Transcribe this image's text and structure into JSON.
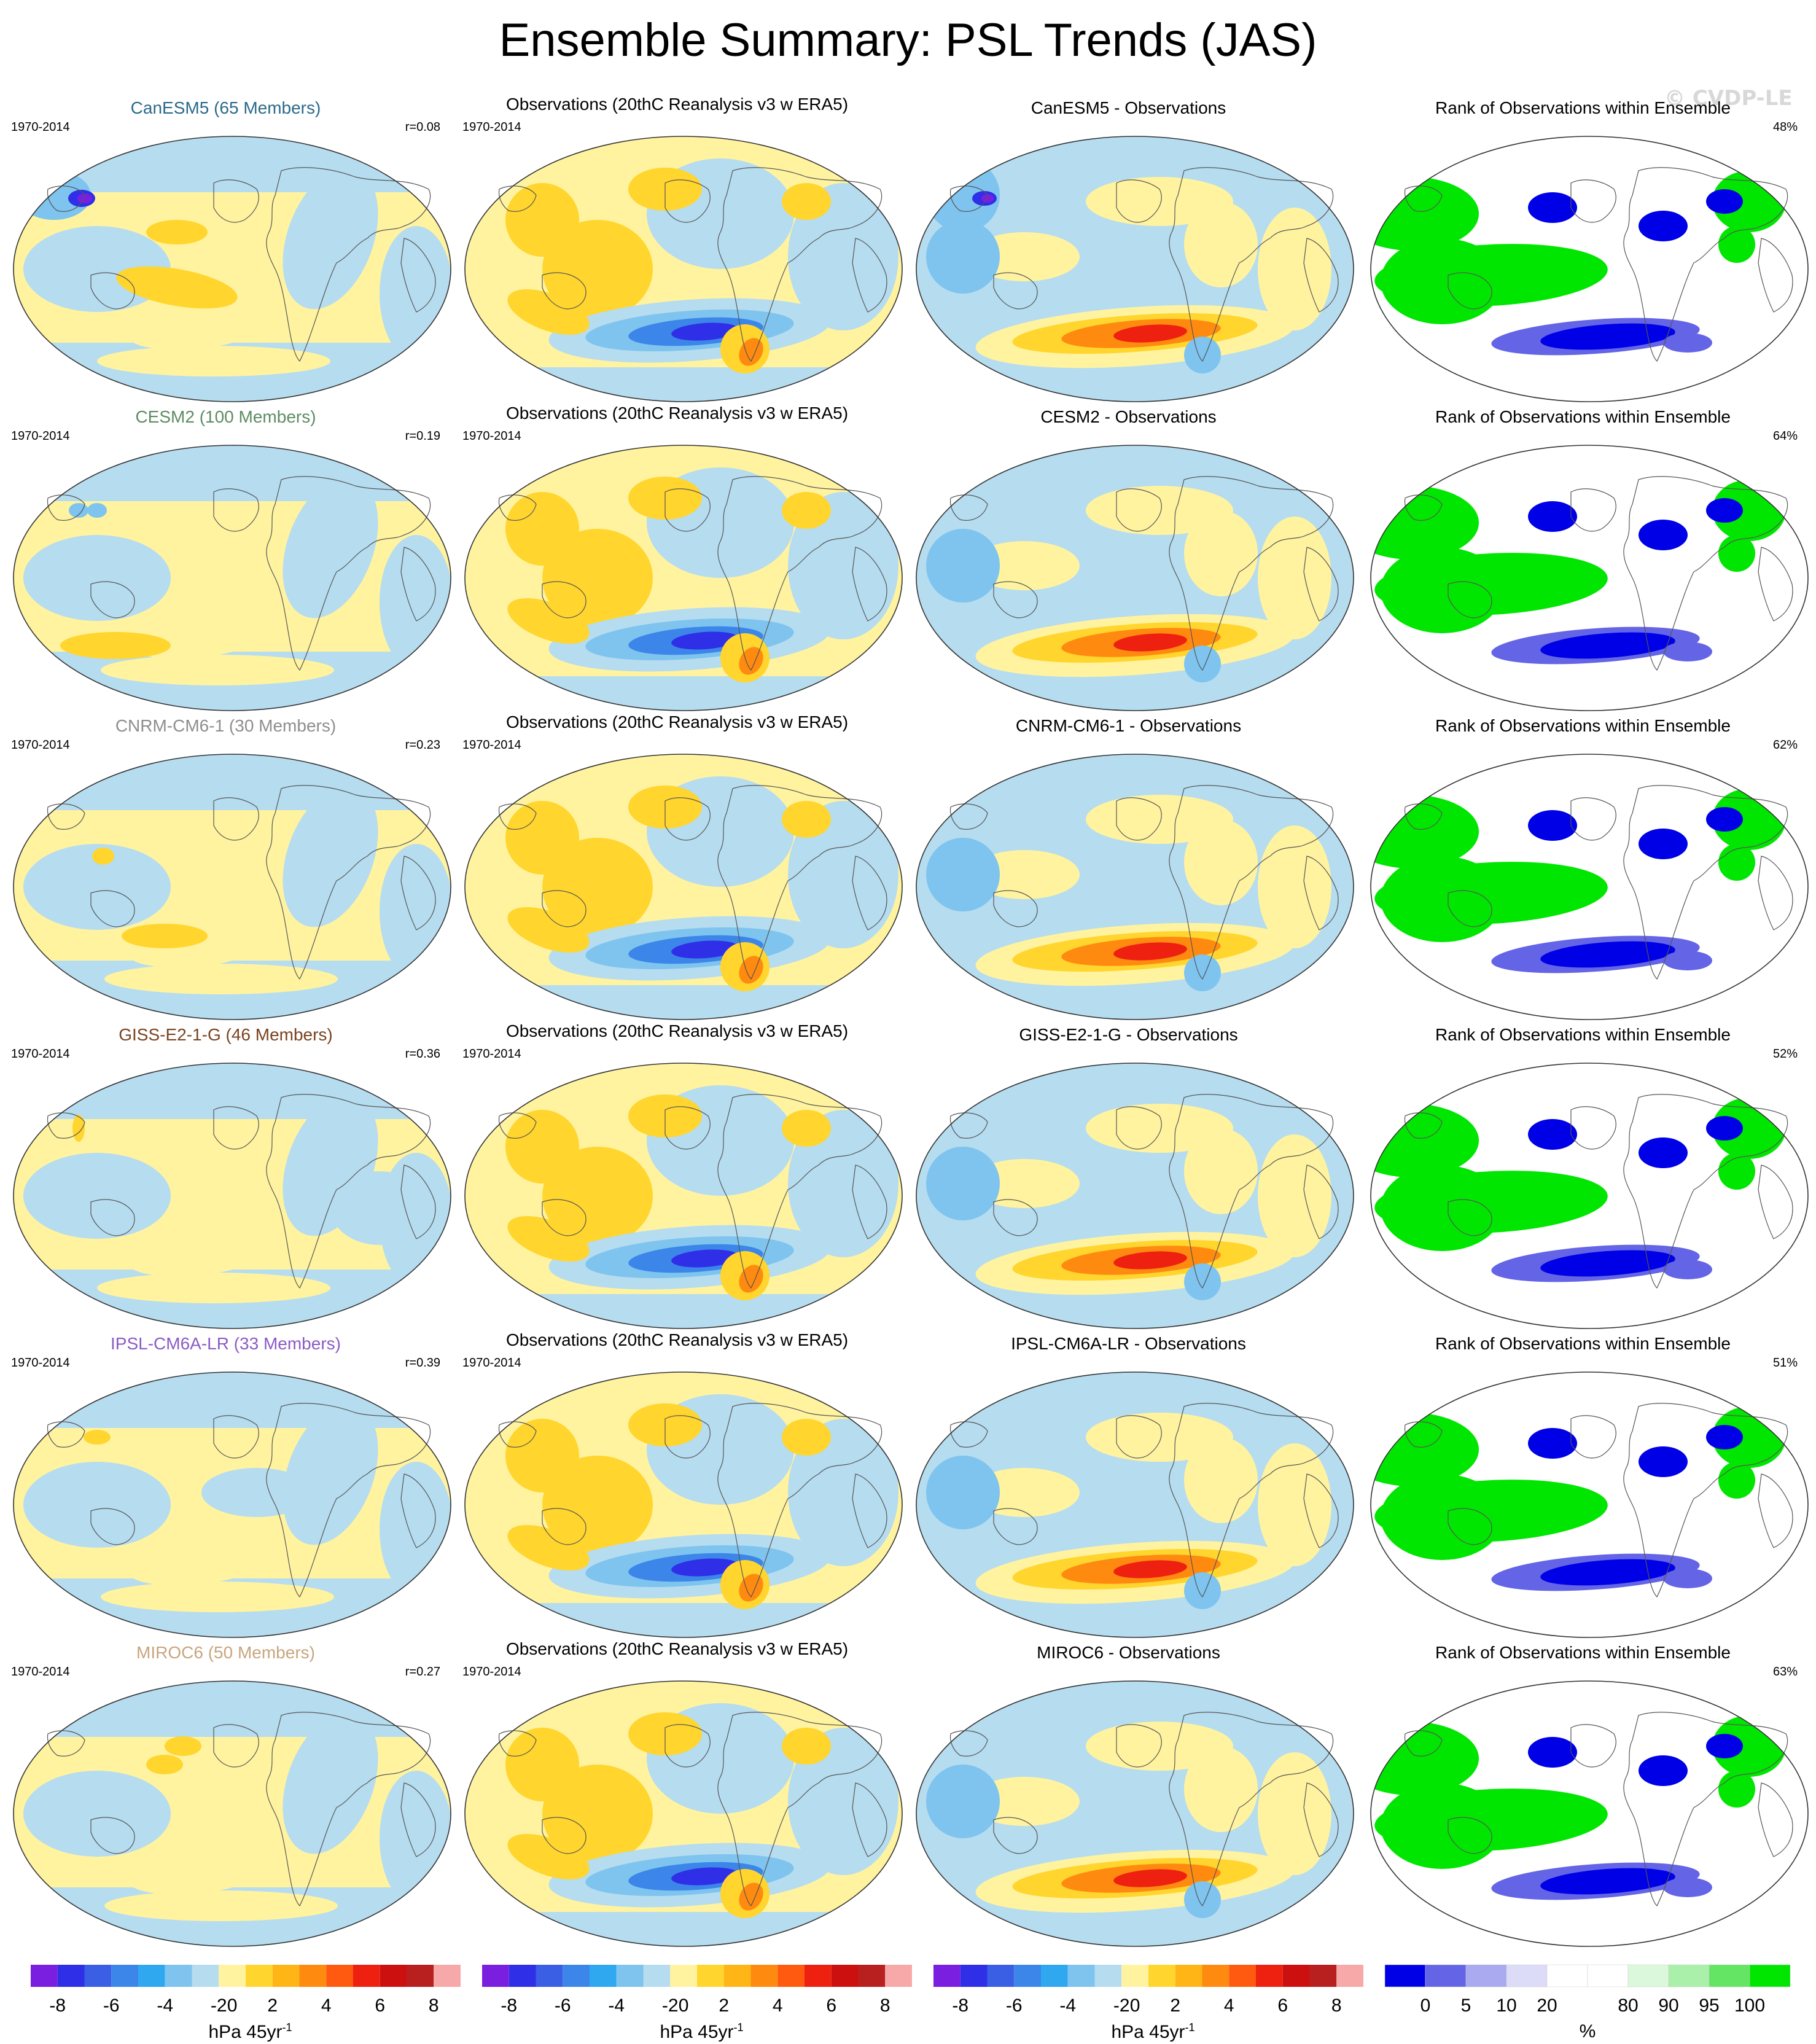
{
  "title": "Ensemble Summary: PSL Trends (JAS)",
  "watermark": "© CVDP-LE",
  "rows": [
    {
      "model": "CanESM5 (65 Members)",
      "model_color": "#2b6a8a",
      "period": "1970-2014",
      "r": "r=0.08",
      "obs_title": "Observations (20thC Reanalysis v3 w ERA5)",
      "obs_period": "1970-2014",
      "diff_title": "CanESM5 - Observations",
      "rank_title": "Rank of Observations within Ensemble",
      "rank_pct": "48%"
    },
    {
      "model": "CESM2 (100 Members)",
      "model_color": "#5e8c63",
      "period": "1970-2014",
      "r": "r=0.19",
      "obs_title": "Observations (20thC Reanalysis v3 w ERA5)",
      "obs_period": "1970-2014",
      "diff_title": "CESM2 - Observations",
      "rank_title": "Rank of Observations within Ensemble",
      "rank_pct": "64%"
    },
    {
      "model": "CNRM-CM6-1 (30 Members)",
      "model_color": "#8e8e8e",
      "period": "1970-2014",
      "r": "r=0.23",
      "obs_title": "Observations (20thC Reanalysis v3 w ERA5)",
      "obs_period": "1970-2014",
      "diff_title": "CNRM-CM6-1 - Observations",
      "rank_title": "Rank of Observations within Ensemble",
      "rank_pct": "62%"
    },
    {
      "model": "GISS-E2-1-G (46 Members)",
      "model_color": "#7a4320",
      "period": "1970-2014",
      "r": "r=0.36",
      "obs_title": "Observations (20thC Reanalysis v3 w ERA5)",
      "obs_period": "1970-2014",
      "diff_title": "GISS-E2-1-G - Observations",
      "rank_title": "Rank of Observations within Ensemble",
      "rank_pct": "52%"
    },
    {
      "model": "IPSL-CM6A-LR (33 Members)",
      "model_color": "#8a5cc6",
      "period": "1970-2014",
      "r": "r=0.39",
      "obs_title": "Observations (20thC Reanalysis v3 w ERA5)",
      "obs_period": "1970-2014",
      "diff_title": "IPSL-CM6A-LR - Observations",
      "rank_title": "Rank of Observations within Ensemble",
      "rank_pct": "51%"
    },
    {
      "model": "MIROC6 (50 Members)",
      "model_color": "#c9a57e",
      "period": "1970-2014",
      "r": "r=0.27",
      "obs_title": "Observations (20thC Reanalysis v3 w ERA5)",
      "obs_period": "1970-2014",
      "diff_title": "MIROC6 - Observations",
      "rank_title": "Rank of Observations within Ensemble",
      "rank_pct": "63%"
    }
  ],
  "trend_colorbar": {
    "unit": "hPa 45yr",
    "unit_sup": "-1",
    "colors": [
      "#7a1fe0",
      "#2f2fe8",
      "#3a5ee4",
      "#3b86e8",
      "#30a8f0",
      "#7ec4ef",
      "#b6dcef",
      "#fff3a0",
      "#ffd52e",
      "#ffb516",
      "#ff8a10",
      "#ff5a10",
      "#ee2010",
      "#cc1010",
      "#b82020",
      "#f7a9a9"
    ],
    "labels": [
      "-8",
      "-6",
      "-4",
      "-2",
      "0",
      "2",
      "4",
      "6",
      "8"
    ]
  },
  "rank_colorbar": {
    "unit": "%",
    "colors": [
      "#0000e6",
      "#6464e6",
      "#aaaaf0",
      "#dcdcf8",
      "#ffffff",
      "#ffffff",
      "#dcf8dc",
      "#aaf0aa",
      "#64e664",
      "#00e600"
    ],
    "labels": [
      "0",
      "5",
      "10",
      "20",
      "80",
      "90",
      "95",
      "100"
    ]
  },
  "map_colors": {
    "pos_light": "#fff3a0",
    "pos_mid": "#ffd52e",
    "pos_strong": "#ff8a10",
    "pos_max": "#ee2010",
    "neg_light": "#b6dcef",
    "neg_mid": "#7ec4ef",
    "neg_strong": "#3b86e8",
    "neg_max": "#2f2fe8",
    "rank_high": "#00e600",
    "rank_low": "#0000e6",
    "rank_low2": "#6464e6",
    "coast": "#555555"
  }
}
